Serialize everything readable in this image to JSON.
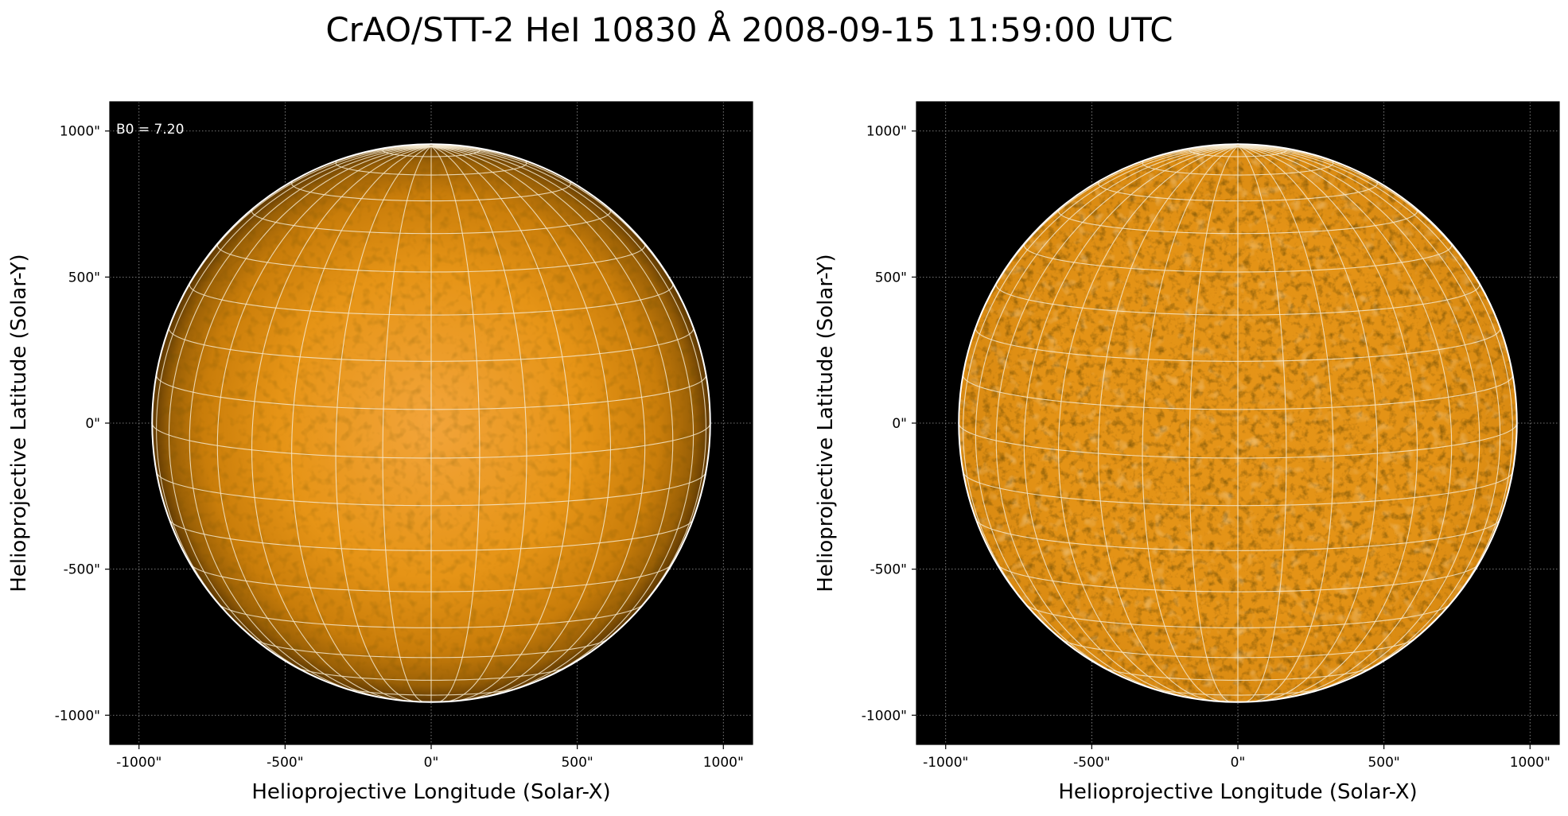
{
  "figure": {
    "title": "CrAO/STT-2 HeI 10830 Å 2008-09-15 11:59:00 UTC",
    "colors": {
      "background": "#ffffff",
      "plot_background": "#000000",
      "disk_bright": "#f2a43a",
      "disk_mid": "#e08d12",
      "disk_dark": "#6e4204",
      "grid": "#f5e8cc",
      "limb": "#ffffff",
      "axis_grid": "#9a9a9a"
    }
  },
  "panels": [
    {
      "id": "left",
      "xlabel": "Helioprojective Longitude (Solar-X)",
      "ylabel": "Helioprojective Latitude (Solar-Y)",
      "annotation": "B0 = 7.20",
      "x_ticks": [
        "-1000\"",
        "-500\"",
        "0\"",
        "500\"",
        "1000\""
      ],
      "y_ticks": [
        "1000\"",
        "500\"",
        "0\"",
        "-500\"",
        "-1000\""
      ],
      "tick_values": [
        -1000,
        -500,
        0,
        500,
        1000
      ],
      "xlim": [
        -1100,
        1100
      ],
      "ylim": [
        -1100,
        1100
      ],
      "solar_radius_arcsec": 955,
      "style": "limb-darkened",
      "b0_deg": 7.2
    },
    {
      "id": "right",
      "xlabel": "Helioprojective Longitude (Solar-X)",
      "ylabel": "Helioprojective Latitude (Solar-Y)",
      "annotation": "",
      "x_ticks": [
        "-1000\"",
        "-500\"",
        "0\"",
        "500\"",
        "1000\""
      ],
      "y_ticks": [
        "1000\"",
        "500\"",
        "0\"",
        "-500\"",
        "-1000\""
      ],
      "tick_values": [
        -1000,
        -500,
        0,
        500,
        1000
      ],
      "xlim": [
        -1100,
        1100
      ],
      "ylim": [
        -1100,
        1100
      ],
      "solar_radius_arcsec": 955,
      "style": "limb-corrected",
      "b0_deg": 7.2
    }
  ]
}
